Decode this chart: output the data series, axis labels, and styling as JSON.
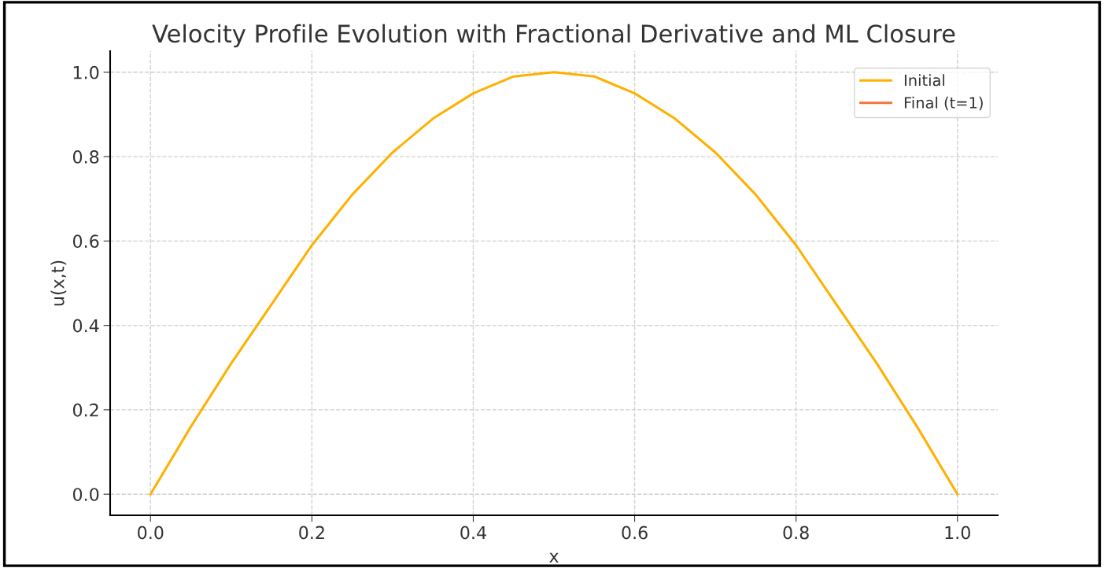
{
  "chart_data": {
    "type": "line",
    "title": "Velocity Profile Evolution with Fractional Derivative and ML Closure",
    "xlabel": "x",
    "ylabel": "u(x,t)",
    "x": [
      0,
      0.05,
      0.1,
      0.15,
      0.2,
      0.25,
      0.3,
      0.35,
      0.4,
      0.45,
      0.5,
      0.55,
      0.6,
      0.65,
      0.7,
      0.75,
      0.8,
      0.85,
      0.9,
      0.95,
      1.0
    ],
    "series": [
      {
        "name": "Initial",
        "color": "#ffb000",
        "values": [
          0,
          0.16,
          0.31,
          0.45,
          0.59,
          0.71,
          0.81,
          0.89,
          0.95,
          0.99,
          1.0,
          0.99,
          0.95,
          0.89,
          0.81,
          0.71,
          0.59,
          0.45,
          0.31,
          0.16,
          0
        ]
      },
      {
        "name": "Final (t=1)",
        "color": "#f4743b",
        "values": [
          null,
          null,
          null,
          null,
          null,
          null,
          null,
          null,
          null,
          null,
          null,
          null,
          null,
          null,
          null,
          null,
          null,
          null,
          null,
          null,
          null
        ]
      }
    ],
    "xlim": [
      -0.05,
      1.05
    ],
    "ylim": [
      -0.05,
      1.05
    ],
    "xticks": [
      {
        "value": 0,
        "label": "0.0"
      },
      0.2,
      0.4,
      0.6,
      0.8,
      {
        "value": 1,
        "label": "1.0"
      }
    ],
    "yticks": [
      {
        "value": 0,
        "label": "0.0"
      },
      0.2,
      0.4,
      0.6,
      0.8,
      {
        "value": 1,
        "label": "1.0"
      }
    ],
    "grid": true,
    "legend": "top right",
    "line_style": "solid",
    "marker": "none"
  }
}
